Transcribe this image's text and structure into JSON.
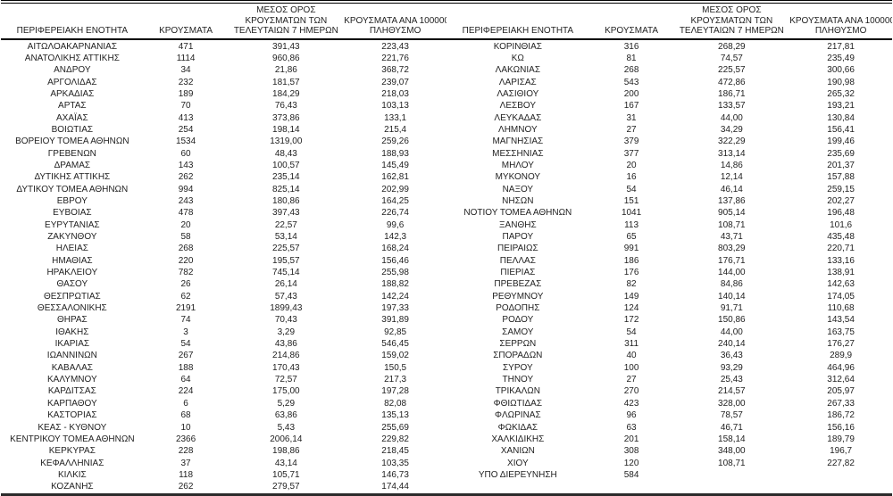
{
  "table": {
    "header": {
      "region": "ΠΕΡΙΦΕΡΕΙΑΚΗ ΕΝΟΤΗΤΑ",
      "cases": "ΚΡΟΥΣΜΑΤΑ",
      "avg7_line1": "ΜΕΣΟΣ ΟΡΟΣ",
      "avg7_line2": "ΚΡΟΥΣΜΑΤΩΝ ΤΩΝ",
      "avg7_line3": "ΤΕΛΕΥΤΑΙΩΝ 7 ΗΜΕΡΩΝ",
      "per100k_line1": "ΚΡΟΥΣΜΑΤΑ ΑΝΑ 100000",
      "per100k_line2": "ΠΛΗΘΥΣΜΟ"
    },
    "left_rows": [
      [
        "ΑΙΤΩΛΟΑΚΑΡΝΑΝΙΑΣ",
        "471",
        "391,43",
        "223,43"
      ],
      [
        "ΑΝΑΤΟΛΙΚΗΣ ΑΤΤΙΚΗΣ",
        "1114",
        "960,86",
        "221,76"
      ],
      [
        "ΑΝΔΡΟΥ",
        "34",
        "21,86",
        "368,72"
      ],
      [
        "ΑΡΓΟΛΙΔΑΣ",
        "232",
        "181,57",
        "239,07"
      ],
      [
        "ΑΡΚΑΔΙΑΣ",
        "189",
        "184,29",
        "218,03"
      ],
      [
        "ΑΡΤΑΣ",
        "70",
        "76,43",
        "103,13"
      ],
      [
        "ΑΧΑΪΑΣ",
        "413",
        "373,86",
        "133,1"
      ],
      [
        "ΒΟΙΩΤΙΑΣ",
        "254",
        "198,14",
        "215,4"
      ],
      [
        "ΒΟΡΕΙΟΥ ΤΟΜΕΑ ΑΘΗΝΩΝ",
        "1534",
        "1319,00",
        "259,26"
      ],
      [
        "ΓΡΕΒΕΝΩΝ",
        "60",
        "48,43",
        "188,93"
      ],
      [
        "ΔΡΑΜΑΣ",
        "143",
        "100,57",
        "145,49"
      ],
      [
        "ΔΥΤΙΚΗΣ ΑΤΤΙΚΗΣ",
        "262",
        "235,14",
        "162,81"
      ],
      [
        "ΔΥΤΙΚΟΥ ΤΟΜΕΑ ΑΘΗΝΩΝ",
        "994",
        "825,14",
        "202,99"
      ],
      [
        "ΕΒΡΟΥ",
        "243",
        "180,86",
        "164,25"
      ],
      [
        "ΕΥΒΟΙΑΣ",
        "478",
        "397,43",
        "226,74"
      ],
      [
        "ΕΥΡΥΤΑΝΙΑΣ",
        "20",
        "22,57",
        "99,6"
      ],
      [
        "ΖΑΚΥΝΘΟΥ",
        "58",
        "53,14",
        "142,3"
      ],
      [
        "ΗΛΕΙΑΣ",
        "268",
        "225,57",
        "168,24"
      ],
      [
        "ΗΜΑΘΙΑΣ",
        "220",
        "195,57",
        "156,46"
      ],
      [
        "ΗΡΑΚΛΕΙΟΥ",
        "782",
        "745,14",
        "255,98"
      ],
      [
        "ΘΑΣΟΥ",
        "26",
        "26,14",
        "188,82"
      ],
      [
        "ΘΕΣΠΡΩΤΙΑΣ",
        "62",
        "57,43",
        "142,24"
      ],
      [
        "ΘΕΣΣΑΛΟΝΙΚΗΣ",
        "2191",
        "1899,43",
        "197,33"
      ],
      [
        "ΘΗΡΑΣ",
        "74",
        "70,43",
        "391,89"
      ],
      [
        "ΙΘΑΚΗΣ",
        "3",
        "3,29",
        "92,85"
      ],
      [
        "ΙΚΑΡΙΑΣ",
        "54",
        "43,86",
        "546,45"
      ],
      [
        "ΙΩΑΝΝΙΝΩΝ",
        "267",
        "214,86",
        "159,02"
      ],
      [
        "ΚΑΒΑΛΑΣ",
        "188",
        "170,43",
        "150,5"
      ],
      [
        "ΚΑΛΥΜΝΟΥ",
        "64",
        "72,57",
        "217,3"
      ],
      [
        "ΚΑΡΔΙΤΣΑΣ",
        "224",
        "175,00",
        "197,28"
      ],
      [
        "ΚΑΡΠΑΘΟΥ",
        "6",
        "5,29",
        "82,08"
      ],
      [
        "ΚΑΣΤΟΡΙΑΣ",
        "68",
        "63,86",
        "135,13"
      ],
      [
        "ΚΕΑΣ - ΚΥΘΝΟΥ",
        "10",
        "5,43",
        "255,69"
      ],
      [
        "ΚΕΝΤΡΙΚΟΥ ΤΟΜΕΑ ΑΘΗΝΩΝ",
        "2366",
        "2006,14",
        "229,82"
      ],
      [
        "ΚΕΡΚΥΡΑΣ",
        "228",
        "198,86",
        "218,45"
      ],
      [
        "ΚΕΦΑΛΛΗΝΙΑΣ",
        "37",
        "43,14",
        "103,35"
      ],
      [
        "ΚΙΛΚΙΣ",
        "118",
        "105,71",
        "146,73"
      ],
      [
        "ΚΟΖΑΝΗΣ",
        "262",
        "279,57",
        "174,44"
      ]
    ],
    "right_rows": [
      [
        "ΚΟΡΙΝΘΙΑΣ",
        "316",
        "268,29",
        "217,81"
      ],
      [
        "ΚΩ",
        "81",
        "74,57",
        "235,49"
      ],
      [
        "ΛΑΚΩΝΙΑΣ",
        "268",
        "225,57",
        "300,66"
      ],
      [
        "ΛΑΡΙΣΑΣ",
        "543",
        "472,86",
        "190,98"
      ],
      [
        "ΛΑΣΙΘΙΟΥ",
        "200",
        "186,71",
        "265,32"
      ],
      [
        "ΛΕΣΒΟΥ",
        "167",
        "133,57",
        "193,21"
      ],
      [
        "ΛΕΥΚΑΔΑΣ",
        "31",
        "44,00",
        "130,84"
      ],
      [
        "ΛΗΜΝΟΥ",
        "27",
        "34,29",
        "156,41"
      ],
      [
        "ΜΑΓΝΗΣΙΑΣ",
        "379",
        "322,29",
        "199,46"
      ],
      [
        "ΜΕΣΣΗΝΙΑΣ",
        "377",
        "313,14",
        "235,69"
      ],
      [
        "ΜΗΛΟΥ",
        "20",
        "14,86",
        "201,37"
      ],
      [
        "ΜΥΚΟΝΟΥ",
        "16",
        "12,14",
        "157,88"
      ],
      [
        "ΝΑΞΟΥ",
        "54",
        "46,14",
        "259,15"
      ],
      [
        "ΝΗΣΩΝ",
        "151",
        "137,86",
        "202,27"
      ],
      [
        "ΝΟΤΙΟΥ ΤΟΜΕΑ ΑΘΗΝΩΝ",
        "1041",
        "905,14",
        "196,48"
      ],
      [
        "ΞΑΝΘΗΣ",
        "113",
        "108,71",
        "101,6"
      ],
      [
        "ΠΑΡΟΥ",
        "65",
        "43,71",
        "435,48"
      ],
      [
        "ΠΕΙΡΑΙΩΣ",
        "991",
        "803,29",
        "220,71"
      ],
      [
        "ΠΕΛΛΑΣ",
        "186",
        "176,71",
        "133,16"
      ],
      [
        "ΠΙΕΡΙΑΣ",
        "176",
        "144,00",
        "138,91"
      ],
      [
        "ΠΡΕΒΕΖΑΣ",
        "82",
        "84,86",
        "142,63"
      ],
      [
        "ΡΕΘΥΜΝΟΥ",
        "149",
        "140,14",
        "174,05"
      ],
      [
        "ΡΟΔΟΠΗΣ",
        "124",
        "91,71",
        "110,68"
      ],
      [
        "ΡΟΔΟΥ",
        "172",
        "150,86",
        "143,54"
      ],
      [
        "ΣΑΜΟΥ",
        "54",
        "44,00",
        "163,75"
      ],
      [
        "ΣΕΡΡΩΝ",
        "311",
        "240,14",
        "176,27"
      ],
      [
        "ΣΠΟΡΑΔΩΝ",
        "40",
        "36,43",
        "289,9"
      ],
      [
        "ΣΥΡΟΥ",
        "100",
        "93,29",
        "464,96"
      ],
      [
        "ΤΗΝΟΥ",
        "27",
        "25,43",
        "312,64"
      ],
      [
        "ΤΡΙΚΑΛΩΝ",
        "270",
        "214,57",
        "205,97"
      ],
      [
        "ΦΘΙΩΤΙΔΑΣ",
        "423",
        "328,00",
        "267,33"
      ],
      [
        "ΦΛΩΡΙΝΑΣ",
        "96",
        "78,57",
        "186,72"
      ],
      [
        "ΦΩΚΙΔΑΣ",
        "63",
        "46,71",
        "156,16"
      ],
      [
        "ΧΑΛΚΙΔΙΚΗΣ",
        "201",
        "158,14",
        "189,79"
      ],
      [
        "ΧΑΝΙΩΝ",
        "308",
        "348,00",
        "196,7"
      ],
      [
        "ΧΙΟΥ",
        "120",
        "108,71",
        "227,82"
      ],
      [
        "ΥΠΟ ΔΙΕΡΕΥΝΗΣΗ",
        "584",
        "",
        ""
      ]
    ]
  }
}
